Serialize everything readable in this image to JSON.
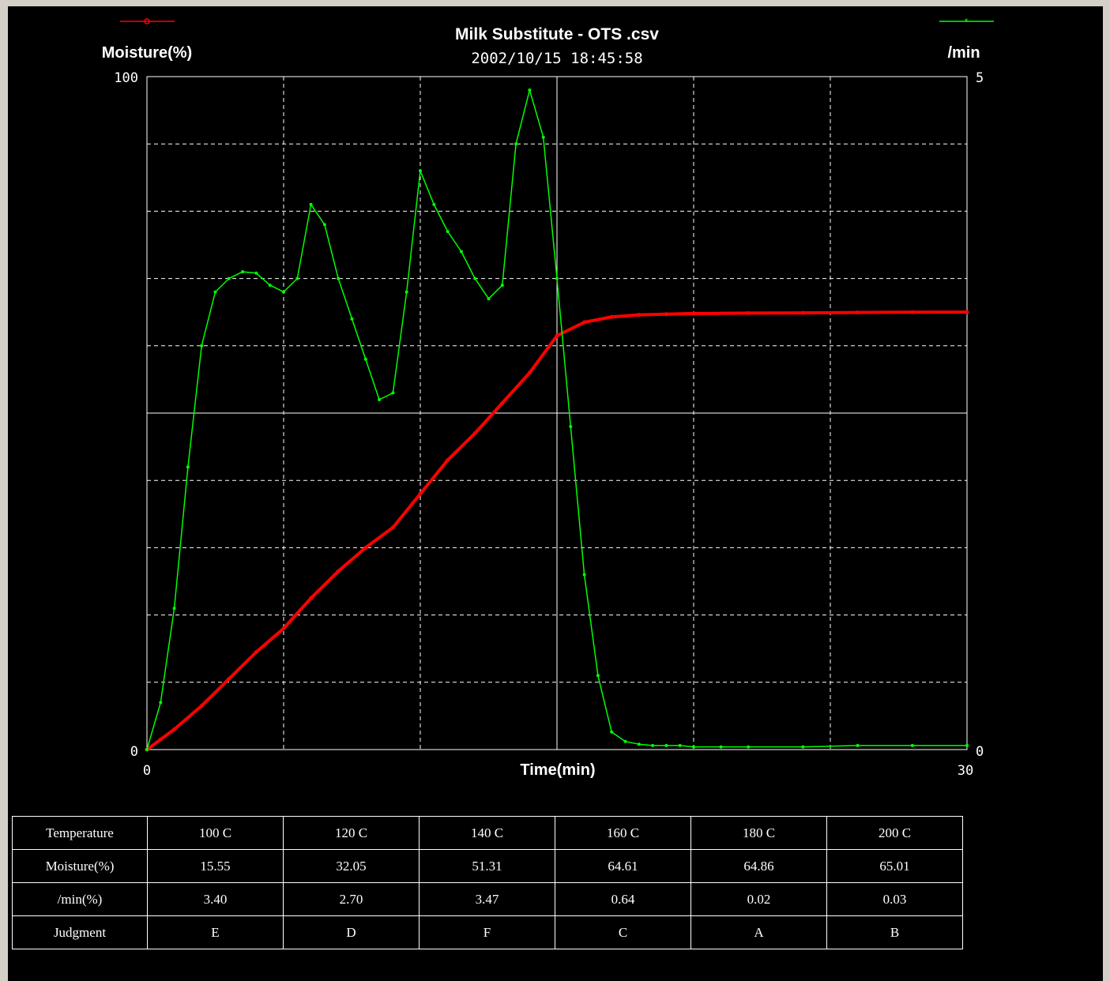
{
  "chart_data": {
    "type": "line",
    "title": "Milk Substitute - OTS .csv",
    "subtitle": "2002/10/15 18:45:58",
    "xlabel": "Time(min)",
    "ylabel_left": "Moisture(%)",
    "ylabel_right": "/min",
    "xlim": [
      0,
      30
    ],
    "ylim_left": [
      0,
      100
    ],
    "ylim_right": [
      0,
      5
    ],
    "x_tick_labels": [
      "0",
      "30"
    ],
    "y_left_tick_labels": [
      "100",
      "0"
    ],
    "y_right_tick_labels": [
      "5",
      "0"
    ],
    "grid": true,
    "legend_placement": "top",
    "series": [
      {
        "axis": "left",
        "color": "#ff0000",
        "x": [
          0,
          0.5,
          1,
          2,
          3,
          4,
          5,
          6,
          7,
          8,
          9,
          10,
          11,
          12,
          13,
          14,
          15,
          16,
          17,
          18,
          19,
          20,
          22,
          24,
          26,
          28,
          30
        ],
        "y": [
          0,
          1.5,
          3,
          6.5,
          10.5,
          14.5,
          18,
          22.5,
          26.5,
          30,
          33,
          38,
          43,
          47,
          51.5,
          56,
          61.5,
          63.5,
          64.3,
          64.6,
          64.7,
          64.8,
          64.86,
          64.9,
          64.95,
          65.0,
          65.01
        ]
      },
      {
        "axis": "right",
        "color": "#00ff00",
        "x": [
          0,
          0.5,
          1,
          1.5,
          2,
          2.5,
          3,
          3.5,
          4,
          4.5,
          5,
          5.5,
          6,
          6.5,
          7,
          7.5,
          8,
          8.5,
          9,
          9.5,
          10,
          10.5,
          11,
          11.5,
          12,
          12.5,
          13,
          13.5,
          14,
          14.5,
          15,
          15.5,
          16,
          16.5,
          17,
          17.5,
          18,
          18.5,
          19,
          19.5,
          20,
          21,
          22,
          24,
          26,
          28,
          30
        ],
        "y": [
          0,
          0.35,
          1.05,
          2.1,
          3.0,
          3.4,
          3.5,
          3.55,
          3.54,
          3.45,
          3.4,
          3.5,
          4.05,
          3.9,
          3.5,
          3.2,
          2.9,
          2.6,
          2.65,
          3.4,
          4.3,
          4.05,
          3.85,
          3.7,
          3.5,
          3.35,
          3.45,
          4.5,
          4.9,
          4.55,
          3.5,
          2.4,
          1.3,
          0.55,
          0.13,
          0.06,
          0.04,
          0.03,
          0.03,
          0.03,
          0.02,
          0.02,
          0.02,
          0.02,
          0.03,
          0.03,
          0.03
        ]
      }
    ]
  },
  "table": {
    "rows": [
      {
        "label": "Temperature",
        "cells": [
          "100 C",
          "120 C",
          "140 C",
          "160 C",
          "180 C",
          "200 C"
        ]
      },
      {
        "label": "Moisture(%)",
        "cells": [
          "15.55",
          "32.05",
          "51.31",
          "64.61",
          "64.86",
          "65.01"
        ]
      },
      {
        "label": "/min(%)",
        "cells": [
          "3.40",
          "2.70",
          "3.47",
          "0.64",
          "0.02",
          "0.03"
        ]
      },
      {
        "label": "Judgment",
        "cells": [
          "E",
          "D",
          "F",
          "C",
          "A",
          "B"
        ]
      }
    ]
  }
}
